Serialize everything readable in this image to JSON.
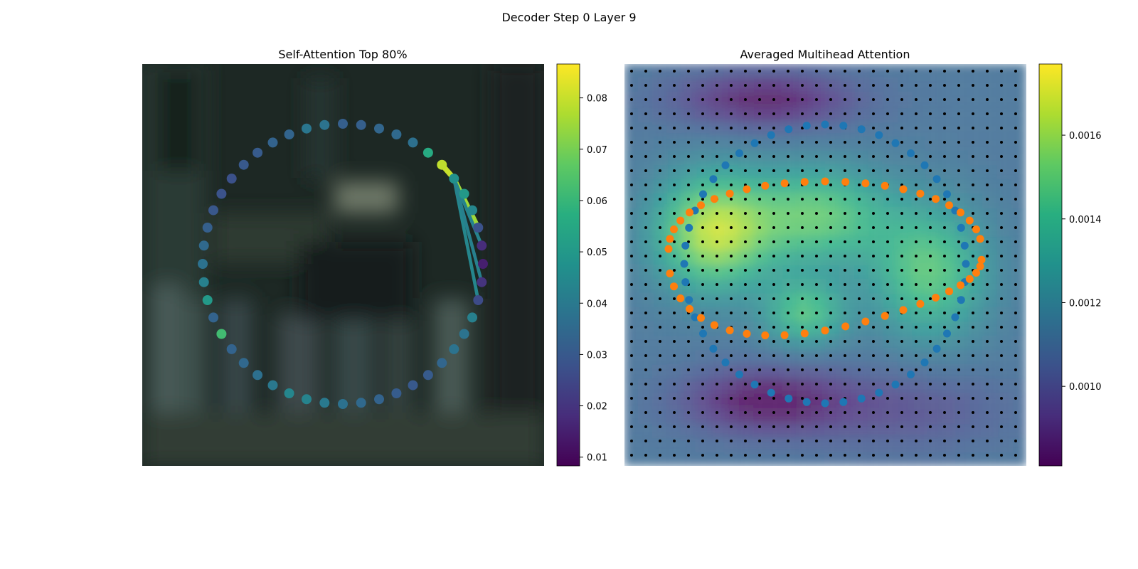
{
  "suptitle": "Decoder Step 0 Layer 9",
  "chart_data": [
    {
      "type": "scatter",
      "title": "Self-Attention Top 80%",
      "description_axes": "off",
      "grid": false,
      "point_count": 48,
      "colorbar": {
        "colormap": "viridis",
        "range": [
          0.0083,
          0.0866
        ],
        "ticks": [
          "0.01",
          "0.02",
          "0.03",
          "0.04",
          "0.05",
          "0.06",
          "0.07",
          "0.08"
        ],
        "tick_values": [
          0.01,
          0.02,
          0.03,
          0.04,
          0.05,
          0.06,
          0.07,
          0.08
        ]
      },
      "point_values": [
        0.032,
        0.038,
        0.039,
        0.0335,
        0.033,
        0.0305,
        0.03,
        0.0275,
        0.0282,
        0.0295,
        0.032,
        0.035,
        0.0375,
        0.042,
        0.05,
        0.033,
        0.062,
        0.033,
        0.0345,
        0.037,
        0.0395,
        0.044,
        0.043,
        0.04,
        0.0375,
        0.035,
        0.033,
        0.031,
        0.03,
        0.0305,
        0.034,
        0.038,
        0.038,
        0.042,
        0.026,
        0.02,
        0.015,
        0.018,
        0.028,
        0.044,
        0.05,
        0.047,
        0.079,
        0.056,
        0.037,
        0.035,
        0.034,
        0.032
      ],
      "edges": [
        {
          "to": 42,
          "weight": 0.08
        },
        {
          "to": 38,
          "weight": 0.075
        },
        {
          "to": 34,
          "weight": 0.044
        },
        {
          "to": 35,
          "weight": 0.042
        },
        {
          "to": 37,
          "weight": 0.043
        }
      ],
      "source_point": 41
    },
    {
      "type": "heatmap",
      "title": "Averaged Multihead Attention",
      "description_axes": "off",
      "grid": false,
      "colorbar": {
        "colormap": "viridis",
        "range": [
          0.00081,
          0.00177
        ],
        "ticks": [
          "0.0010",
          "0.0012",
          "0.0014",
          "0.0016"
        ],
        "tick_values": [
          0.001,
          0.0012,
          0.0014,
          0.0016
        ]
      },
      "grid_points": {
        "rows": 28,
        "cols": 28,
        "color": "#000000"
      },
      "series": [
        {
          "color": "#1f77b4",
          "point_count": 48
        },
        {
          "color": "#ff7f0e",
          "point_count": 48
        }
      ]
    }
  ]
}
